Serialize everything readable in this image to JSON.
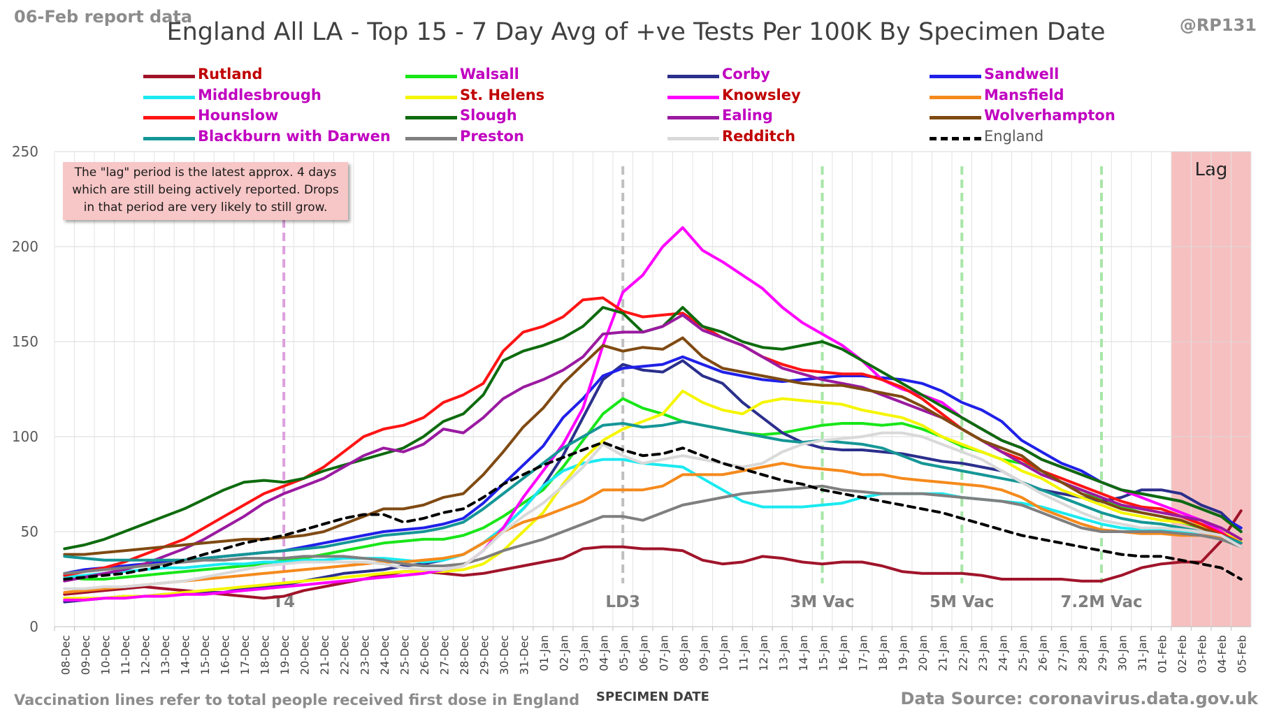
{
  "header": {
    "report_date": "06-Feb report data",
    "title": "England All LA - Top 15 - 7 Day Avg of +ve Tests Per 100K By Specimen Date",
    "handle": "@RP131"
  },
  "note": {
    "line1": "The \"lag\" period is the latest approx. 4 days",
    "line2": "which are still being actively reported. Drops",
    "line3": "in that period are very likely to still grow."
  },
  "footer": {
    "vaccination_note": "Vaccination lines refer to total people received first dose in England",
    "source": "Data Source: coronavirus.data.gov.uk"
  },
  "chart_data": {
    "type": "line",
    "title": "England All LA - Top 15 - 7 Day Avg of +ve Tests Per 100K By Specimen Date",
    "xlabel": "SPECIMEN DATE",
    "ylabel": "",
    "ylim": [
      0,
      250
    ],
    "yticks": [
      0,
      50,
      100,
      150,
      200,
      250
    ],
    "grid": true,
    "legend_position": "top",
    "categories": [
      "08-Dec",
      "09-Dec",
      "10-Dec",
      "11-Dec",
      "12-Dec",
      "13-Dec",
      "14-Dec",
      "15-Dec",
      "16-Dec",
      "17-Dec",
      "18-Dec",
      "19-Dec",
      "20-Dec",
      "21-Dec",
      "22-Dec",
      "23-Dec",
      "24-Dec",
      "25-Dec",
      "26-Dec",
      "27-Dec",
      "28-Dec",
      "29-Dec",
      "30-Dec",
      "31-Dec",
      "01-Jan",
      "02-Jan",
      "03-Jan",
      "04-Jan",
      "05-Jan",
      "06-Jan",
      "07-Jan",
      "08-Jan",
      "09-Jan",
      "10-Jan",
      "11-Jan",
      "12-Jan",
      "13-Jan",
      "14-Jan",
      "15-Jan",
      "16-Jan",
      "17-Jan",
      "18-Jan",
      "19-Jan",
      "20-Jan",
      "21-Jan",
      "22-Jan",
      "23-Jan",
      "24-Jan",
      "25-Jan",
      "26-Jan",
      "27-Jan",
      "28-Jan",
      "29-Jan",
      "30-Jan",
      "31-Jan",
      "01-Feb",
      "02-Feb",
      "03-Feb",
      "04-Feb",
      "05-Feb"
    ],
    "markers": [
      {
        "label": "T4",
        "date": "19-Dec",
        "color": "#dda0dd"
      },
      {
        "label": "LD3",
        "date": "05-Jan",
        "color": "#bfbfbf"
      },
      {
        "label": "3M Vac",
        "date": "15-Jan",
        "color": "#a8e6a8"
      },
      {
        "label": "5M Vac",
        "date": "22-Jan",
        "color": "#a8e6a8"
      },
      {
        "label": "7.2M Vac",
        "date": "29-Jan",
        "color": "#a8e6a8"
      }
    ],
    "lag_region": {
      "label": "Lag",
      "from": "02-Feb",
      "to": "05-Feb",
      "color": "#f7c0c0"
    },
    "series": [
      {
        "name": "Rutland",
        "color": "#a0142a",
        "label_color": "#c00000",
        "dashed": false,
        "values": [
          17,
          18,
          19,
          20,
          21,
          20,
          19,
          18,
          17,
          16,
          15,
          16,
          19,
          21,
          23,
          25,
          27,
          29,
          29,
          28,
          27,
          28,
          30,
          32,
          34,
          36,
          41,
          42,
          42,
          41,
          41,
          40,
          35,
          33,
          34,
          37,
          36,
          34,
          33,
          34,
          34,
          32,
          29,
          28,
          28,
          28,
          27,
          25,
          25,
          25,
          25,
          24,
          24,
          27,
          31,
          33,
          34,
          34,
          45,
          61
        ]
      },
      {
        "name": "Walsall",
        "color": "#19e619",
        "label_color": "#c000c0",
        "dashed": false,
        "values": [
          26,
          25,
          25,
          26,
          27,
          28,
          29,
          30,
          31,
          32,
          33,
          35,
          36,
          38,
          40,
          42,
          44,
          45,
          46,
          46,
          48,
          52,
          58,
          65,
          72,
          84,
          98,
          112,
          120,
          115,
          112,
          108,
          106,
          104,
          102,
          101,
          102,
          104,
          106,
          107,
          107,
          106,
          107,
          104,
          100,
          95,
          92,
          88,
          86,
          82,
          76,
          72,
          67,
          63,
          60,
          58,
          55,
          52,
          48,
          42
        ]
      },
      {
        "name": "Corby",
        "color": "#2b2f8c",
        "label_color": "#c000c0",
        "dashed": false,
        "values": [
          13,
          14,
          15,
          16,
          16,
          17,
          17,
          18,
          18,
          20,
          21,
          22,
          24,
          26,
          28,
          29,
          30,
          32,
          33,
          35,
          38,
          44,
          52,
          62,
          74,
          90,
          110,
          130,
          138,
          135,
          134,
          140,
          132,
          128,
          118,
          110,
          102,
          97,
          94,
          93,
          93,
          92,
          91,
          89,
          87,
          86,
          84,
          82,
          76,
          72,
          70,
          68,
          66,
          68,
          72,
          72,
          70,
          64,
          60,
          50
        ]
      },
      {
        "name": "Sandwell",
        "color": "#2020e8",
        "label_color": "#c000c0",
        "dashed": false,
        "values": [
          28,
          30,
          31,
          32,
          33,
          34,
          35,
          36,
          37,
          38,
          39,
          40,
          42,
          44,
          46,
          48,
          50,
          51,
          52,
          54,
          57,
          65,
          75,
          85,
          95,
          110,
          120,
          132,
          136,
          137,
          138,
          142,
          138,
          134,
          132,
          130,
          129,
          130,
          131,
          132,
          132,
          131,
          130,
          128,
          124,
          118,
          114,
          108,
          98,
          92,
          86,
          82,
          76,
          72,
          70,
          68,
          66,
          62,
          58,
          52
        ]
      },
      {
        "name": "Middlesbrough",
        "color": "#1aeaf0",
        "label_color": "#c000c0",
        "dashed": false,
        "values": [
          26,
          27,
          28,
          29,
          30,
          31,
          31,
          32,
          33,
          33,
          34,
          34,
          35,
          35,
          36,
          36,
          36,
          35,
          34,
          35,
          38,
          44,
          52,
          62,
          74,
          82,
          86,
          88,
          88,
          86,
          85,
          84,
          78,
          72,
          66,
          63,
          63,
          63,
          64,
          65,
          68,
          70,
          70,
          70,
          70,
          68,
          67,
          66,
          65,
          63,
          60,
          57,
          54,
          52,
          51,
          51,
          50,
          48,
          46,
          42
        ]
      },
      {
        "name": "St. Helens",
        "color": "#f5f500",
        "label_color": "#c00000",
        "dashed": false,
        "values": [
          15,
          15,
          15,
          16,
          16,
          17,
          18,
          19,
          20,
          21,
          22,
          23,
          24,
          25,
          26,
          27,
          28,
          29,
          29,
          29,
          30,
          33,
          40,
          50,
          60,
          75,
          88,
          98,
          104,
          108,
          112,
          124,
          118,
          114,
          112,
          118,
          120,
          119,
          118,
          117,
          114,
          112,
          110,
          106,
          100,
          96,
          92,
          88,
          82,
          78,
          72,
          68,
          64,
          60,
          58,
          56,
          55,
          53,
          50,
          45
        ]
      },
      {
        "name": "Knowsley",
        "color": "#ff00ff",
        "label_color": "#c00000",
        "dashed": false,
        "values": [
          14,
          14,
          15,
          15,
          16,
          16,
          17,
          17,
          18,
          19,
          20,
          21,
          22,
          23,
          24,
          25,
          26,
          27,
          28,
          30,
          32,
          40,
          52,
          68,
          82,
          96,
          115,
          148,
          176,
          185,
          200,
          210,
          198,
          192,
          185,
          178,
          168,
          160,
          154,
          148,
          140,
          130,
          125,
          122,
          118,
          110,
          104,
          98,
          94,
          88,
          84,
          80,
          76,
          72,
          68,
          64,
          60,
          56,
          50,
          42
        ]
      },
      {
        "name": "Mansfield",
        "color": "#f58a1c",
        "label_color": "#c000c0",
        "dashed": false,
        "values": [
          18,
          19,
          20,
          21,
          22,
          23,
          24,
          25,
          26,
          27,
          28,
          29,
          30,
          31,
          32,
          33,
          34,
          34,
          35,
          36,
          38,
          44,
          50,
          55,
          58,
          62,
          66,
          72,
          72,
          72,
          74,
          80,
          80,
          80,
          82,
          84,
          86,
          84,
          83,
          82,
          80,
          80,
          78,
          77,
          76,
          75,
          74,
          72,
          68,
          62,
          58,
          54,
          51,
          50,
          49,
          49,
          48,
          48,
          47,
          44
        ]
      },
      {
        "name": "Hounslow",
        "color": "#ff1414",
        "label_color": "#c000c0",
        "dashed": false,
        "values": [
          27,
          29,
          31,
          34,
          38,
          42,
          46,
          52,
          58,
          64,
          70,
          74,
          78,
          84,
          92,
          100,
          104,
          106,
          110,
          118,
          122,
          128,
          145,
          155,
          158,
          163,
          172,
          173,
          166,
          163,
          164,
          165,
          158,
          152,
          148,
          142,
          138,
          135,
          134,
          133,
          133,
          130,
          126,
          120,
          112,
          104,
          98,
          92,
          88,
          82,
          78,
          74,
          70,
          66,
          63,
          62,
          58,
          54,
          49,
          44
        ]
      },
      {
        "name": "Slough",
        "color": "#0e6b0e",
        "label_color": "#c000c0",
        "dashed": false,
        "values": [
          41,
          43,
          46,
          50,
          54,
          58,
          62,
          67,
          72,
          76,
          77,
          76,
          78,
          82,
          85,
          88,
          91,
          94,
          100,
          108,
          112,
          122,
          140,
          145,
          148,
          152,
          158,
          168,
          165,
          155,
          158,
          168,
          158,
          155,
          150,
          147,
          146,
          148,
          150,
          146,
          140,
          134,
          128,
          122,
          116,
          110,
          104,
          98,
          94,
          88,
          84,
          80,
          76,
          72,
          70,
          68,
          66,
          62,
          58,
          50
        ]
      },
      {
        "name": "Ealing",
        "color": "#9a1aa0",
        "label_color": "#c000c0",
        "dashed": false,
        "values": [
          24,
          26,
          28,
          30,
          33,
          37,
          41,
          46,
          52,
          58,
          65,
          70,
          74,
          78,
          84,
          90,
          94,
          92,
          96,
          104,
          102,
          110,
          120,
          126,
          130,
          135,
          142,
          154,
          155,
          155,
          158,
          164,
          156,
          152,
          148,
          142,
          136,
          133,
          130,
          128,
          126,
          122,
          118,
          114,
          110,
          104,
          98,
          92,
          86,
          80,
          76,
          72,
          68,
          64,
          62,
          60,
          58,
          56,
          52,
          46
        ]
      },
      {
        "name": "Wolverhampton",
        "color": "#7f4a12",
        "label_color": "#c000c0",
        "dashed": false,
        "values": [
          38,
          38,
          39,
          40,
          41,
          42,
          43,
          44,
          45,
          46,
          46,
          47,
          48,
          50,
          54,
          58,
          62,
          62,
          64,
          68,
          70,
          80,
          92,
          105,
          115,
          128,
          138,
          148,
          145,
          147,
          146,
          152,
          142,
          136,
          134,
          132,
          130,
          128,
          127,
          127,
          125,
          123,
          121,
          116,
          110,
          104,
          98,
          94,
          90,
          82,
          76,
          70,
          66,
          62,
          60,
          58,
          56,
          52,
          48,
          42
        ]
      },
      {
        "name": "Blackburn with Darwen",
        "color": "#159696",
        "label_color": "#c000c0",
        "dashed": false,
        "values": [
          37,
          36,
          35,
          35,
          35,
          35,
          35,
          36,
          37,
          38,
          39,
          40,
          41,
          42,
          44,
          46,
          48,
          49,
          50,
          52,
          55,
          62,
          70,
          78,
          86,
          94,
          100,
          106,
          107,
          105,
          106,
          108,
          106,
          104,
          102,
          100,
          98,
          97,
          98,
          97,
          96,
          94,
          90,
          86,
          84,
          82,
          80,
          78,
          76,
          72,
          68,
          64,
          60,
          57,
          55,
          54,
          52,
          50,
          48,
          44
        ]
      },
      {
        "name": "Preston",
        "color": "#7f7f7f",
        "label_color": "#c000c0",
        "dashed": false,
        "values": [
          28,
          29,
          30,
          31,
          32,
          33,
          34,
          35,
          35,
          36,
          36,
          36,
          37,
          37,
          37,
          36,
          35,
          33,
          32,
          32,
          33,
          36,
          40,
          43,
          46,
          50,
          54,
          58,
          58,
          56,
          60,
          64,
          66,
          68,
          70,
          71,
          72,
          73,
          74,
          72,
          71,
          70,
          70,
          70,
          69,
          68,
          67,
          66,
          64,
          60,
          56,
          52,
          50,
          50,
          50,
          50,
          49,
          48,
          46,
          42
        ]
      },
      {
        "name": "Redditch",
        "color": "#d9d9d9",
        "label_color": "#c00000",
        "dashed": false,
        "values": [
          20,
          20,
          21,
          21,
          22,
          23,
          24,
          26,
          28,
          30,
          32,
          33,
          34,
          34,
          34,
          34,
          33,
          31,
          30,
          30,
          32,
          40,
          50,
          58,
          65,
          74,
          84,
          96,
          90,
          86,
          88,
          90,
          88,
          86,
          84,
          86,
          92,
          96,
          98,
          99,
          100,
          102,
          102,
          100,
          96,
          92,
          88,
          82,
          76,
          70,
          65,
          60,
          56,
          54,
          52,
          52,
          51,
          50,
          48,
          42
        ]
      },
      {
        "name": "England",
        "color": "#000000",
        "label_color": "#595959",
        "dashed": true,
        "values": [
          25,
          26,
          27,
          28,
          30,
          32,
          35,
          38,
          41,
          44,
          46,
          48,
          51,
          54,
          57,
          59,
          59,
          55,
          57,
          60,
          62,
          68,
          75,
          80,
          85,
          89,
          93,
          97,
          93,
          90,
          91,
          94,
          90,
          86,
          83,
          80,
          77,
          75,
          72,
          70,
          68,
          66,
          64,
          62,
          60,
          57,
          54,
          51,
          48,
          46,
          44,
          42,
          40,
          38,
          37,
          37,
          35,
          33,
          31,
          25
        ]
      }
    ]
  }
}
